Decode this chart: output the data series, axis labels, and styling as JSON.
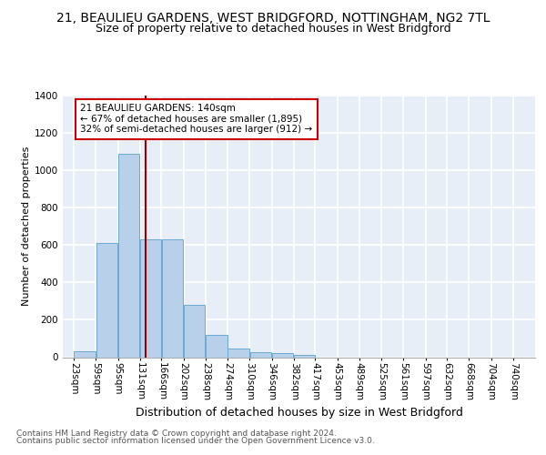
{
  "title": "21, BEAULIEU GARDENS, WEST BRIDGFORD, NOTTINGHAM, NG2 7TL",
  "subtitle": "Size of property relative to detached houses in West Bridgford",
  "xlabel": "Distribution of detached houses by size in West Bridgford",
  "ylabel": "Number of detached properties",
  "bin_labels": [
    "23sqm",
    "59sqm",
    "95sqm",
    "131sqm",
    "166sqm",
    "202sqm",
    "238sqm",
    "274sqm",
    "310sqm",
    "346sqm",
    "382sqm",
    "417sqm",
    "453sqm",
    "489sqm",
    "525sqm",
    "561sqm",
    "597sqm",
    "632sqm",
    "668sqm",
    "704sqm",
    "740sqm"
  ],
  "bin_edges": [
    23,
    59,
    95,
    131,
    166,
    202,
    238,
    274,
    310,
    346,
    382,
    417,
    453,
    489,
    525,
    561,
    597,
    632,
    668,
    704,
    740
  ],
  "bar_heights": [
    30,
    610,
    1090,
    630,
    630,
    280,
    120,
    45,
    25,
    22,
    12,
    0,
    0,
    0,
    0,
    0,
    0,
    0,
    0,
    0,
    0
  ],
  "bar_color": "#b8d0ea",
  "bar_edge_color": "#6aaad4",
  "property_size": 140,
  "vline_color": "#990000",
  "annotation_text": "21 BEAULIEU GARDENS: 140sqm\n← 67% of detached houses are smaller (1,895)\n32% of semi-detached houses are larger (912) →",
  "annotation_box_color": "#ffffff",
  "annotation_box_edge": "#cc0000",
  "ylim": [
    0,
    1400
  ],
  "yticks": [
    0,
    200,
    400,
    600,
    800,
    1000,
    1200,
    1400
  ],
  "footer_line1": "Contains HM Land Registry data © Crown copyright and database right 2024.",
  "footer_line2": "Contains public sector information licensed under the Open Government Licence v3.0.",
  "bg_color": "#e8eef8",
  "grid_color": "#ffffff",
  "title_fontsize": 10,
  "subtitle_fontsize": 9,
  "ylabel_fontsize": 8,
  "xlabel_fontsize": 9,
  "tick_fontsize": 7.5,
  "annotation_fontsize": 7.5,
  "footer_fontsize": 6.5
}
